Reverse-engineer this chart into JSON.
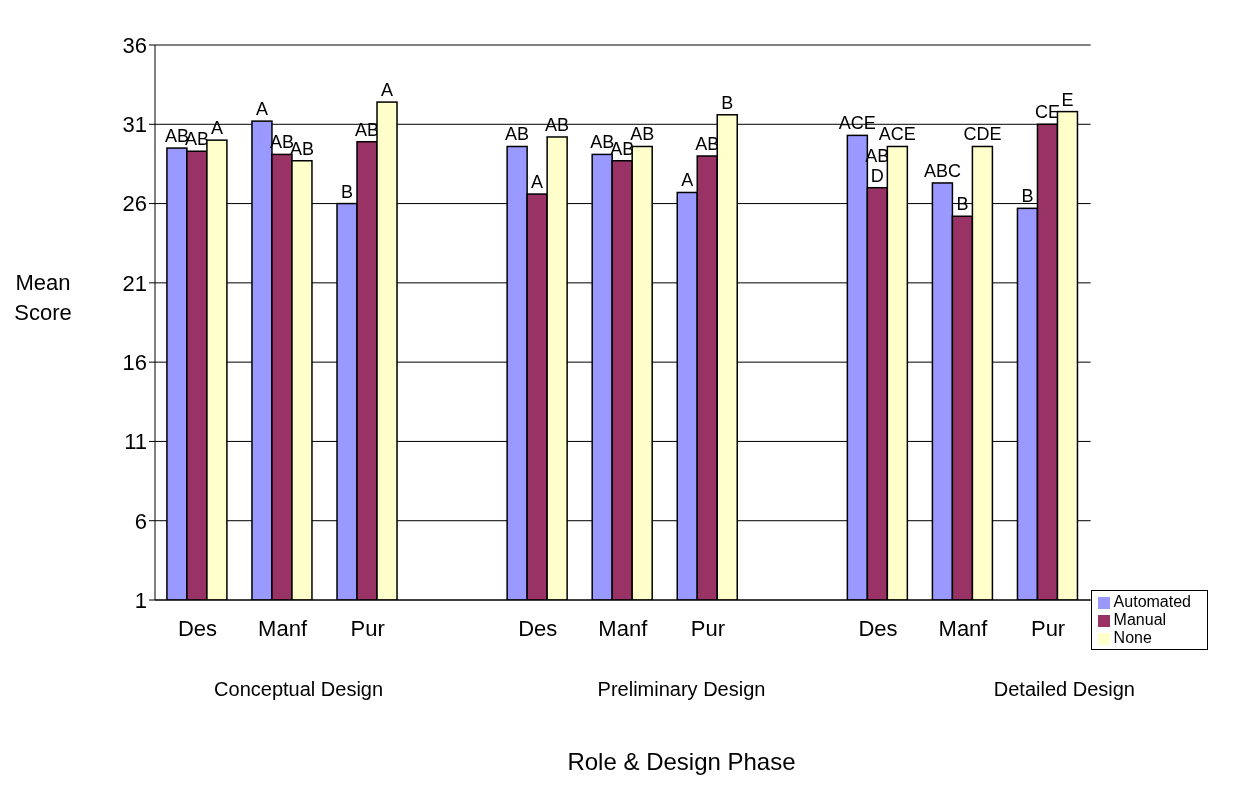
{
  "chart_data": {
    "type": "bar",
    "xlabel": "Role & Design Phase",
    "ylabel": "Mean Score",
    "categories": [
      "Des",
      "Manf",
      "Pur",
      null,
      "Des",
      "Manf",
      "Pur",
      null,
      "Des",
      "Manf",
      "Pur"
    ],
    "series": [
      {
        "name": "Automated",
        "color": "#9999ff",
        "values": [
          29.5,
          31.2,
          26.0,
          null,
          29.6,
          29.1,
          26.7,
          null,
          30.3,
          27.3,
          25.7
        ],
        "value_labels": [
          "AB",
          "A",
          "B",
          null,
          "AB",
          "AB",
          "A",
          null,
          "ACE",
          "ABC",
          "B"
        ]
      },
      {
        "name": "Manual",
        "color": "#993366",
        "values": [
          29.3,
          29.1,
          29.9,
          null,
          26.6,
          28.7,
          29.0,
          null,
          27.0,
          25.2,
          31.0
        ],
        "value_labels": [
          "AB",
          "AB",
          "AB",
          null,
          "A",
          "AB",
          "AB",
          null,
          "AB\nD",
          "B",
          "CE"
        ]
      },
      {
        "name": "None",
        "color": "#ffffcc",
        "values": [
          30.0,
          28.7,
          32.4,
          null,
          30.2,
          29.6,
          31.6,
          null,
          29.6,
          29.6,
          31.8
        ],
        "value_labels": [
          "A",
          "AB",
          "A",
          null,
          "AB",
          "AB",
          "B",
          null,
          "ACE",
          "CDE",
          "E"
        ]
      }
    ],
    "annotations": [
      "Conceptual Design",
      "Preliminary Design",
      "Detailed Design"
    ],
    "ylim": [
      1,
      36
    ],
    "yticks": [
      1,
      6,
      11,
      16,
      21,
      26,
      31,
      36
    ],
    "grid": "y",
    "legend": "bottom right"
  }
}
